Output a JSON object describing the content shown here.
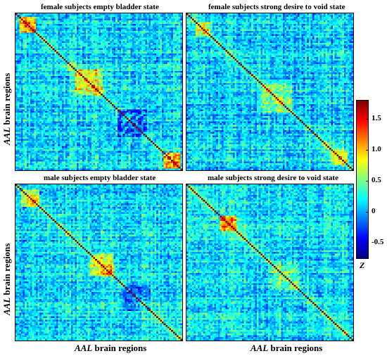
{
  "chart_data": [
    {
      "type": "heatmap",
      "title": "female subjects  empty bladder state",
      "xlabel": "",
      "ylabel": "AAL brain regions"
    },
    {
      "type": "heatmap",
      "title": "female subjects  strong desire to void state",
      "xlabel": "",
      "ylabel": ""
    },
    {
      "type": "heatmap",
      "title": "male subjects  empty bladder state",
      "xlabel": "AAL brain regions",
      "ylabel": "AAL brain regions"
    },
    {
      "type": "heatmap",
      "title": "male subjects  strong desire to void state",
      "xlabel": "AAL brain regions",
      "ylabel": ""
    }
  ],
  "colorbar": {
    "label": "Z",
    "range": [
      -0.75,
      1.8
    ],
    "ticks": [
      {
        "value": 1.5,
        "label": "1.5"
      },
      {
        "value": 1.0,
        "label": "1.0"
      },
      {
        "value": 0.5,
        "label": "0.5"
      },
      {
        "value": 0.0,
        "label": "0"
      },
      {
        "value": -0.5,
        "label": "-0.5"
      }
    ],
    "colormap": "jet"
  },
  "axis_labels": {
    "prefix": "AAL",
    "suffix": "brain regions"
  }
}
